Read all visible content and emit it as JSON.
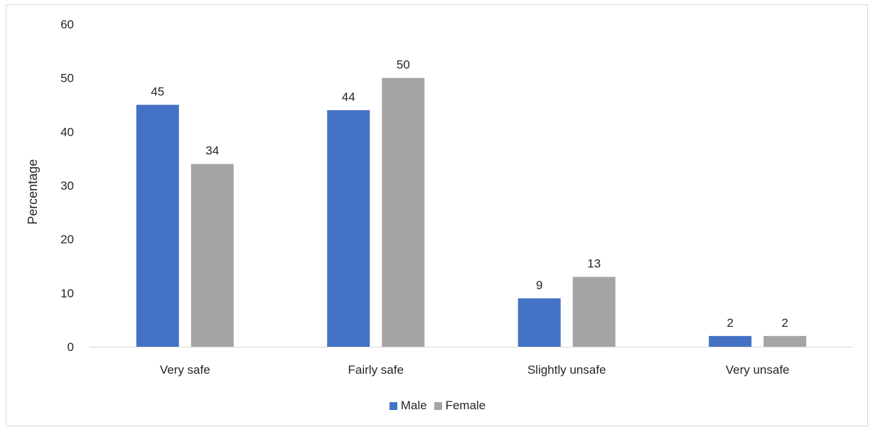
{
  "chart_data": {
    "type": "bar",
    "title": "",
    "xlabel": "",
    "ylabel": "Percentage",
    "ylim": [
      0,
      60
    ],
    "yticks": [
      0,
      10,
      20,
      30,
      40,
      50,
      60
    ],
    "categories": [
      "Very safe",
      "Fairly safe",
      "Slightly unsafe",
      "Very unsafe"
    ],
    "series": [
      {
        "name": "Male",
        "values": [
          45,
          44,
          9,
          2
        ],
        "color": "#4472c4"
      },
      {
        "name": "Female",
        "values": [
          34,
          50,
          13,
          2
        ],
        "color": "#a5a5a5"
      }
    ],
    "grid": false,
    "legend_position": "bottom",
    "data_labels": true
  }
}
